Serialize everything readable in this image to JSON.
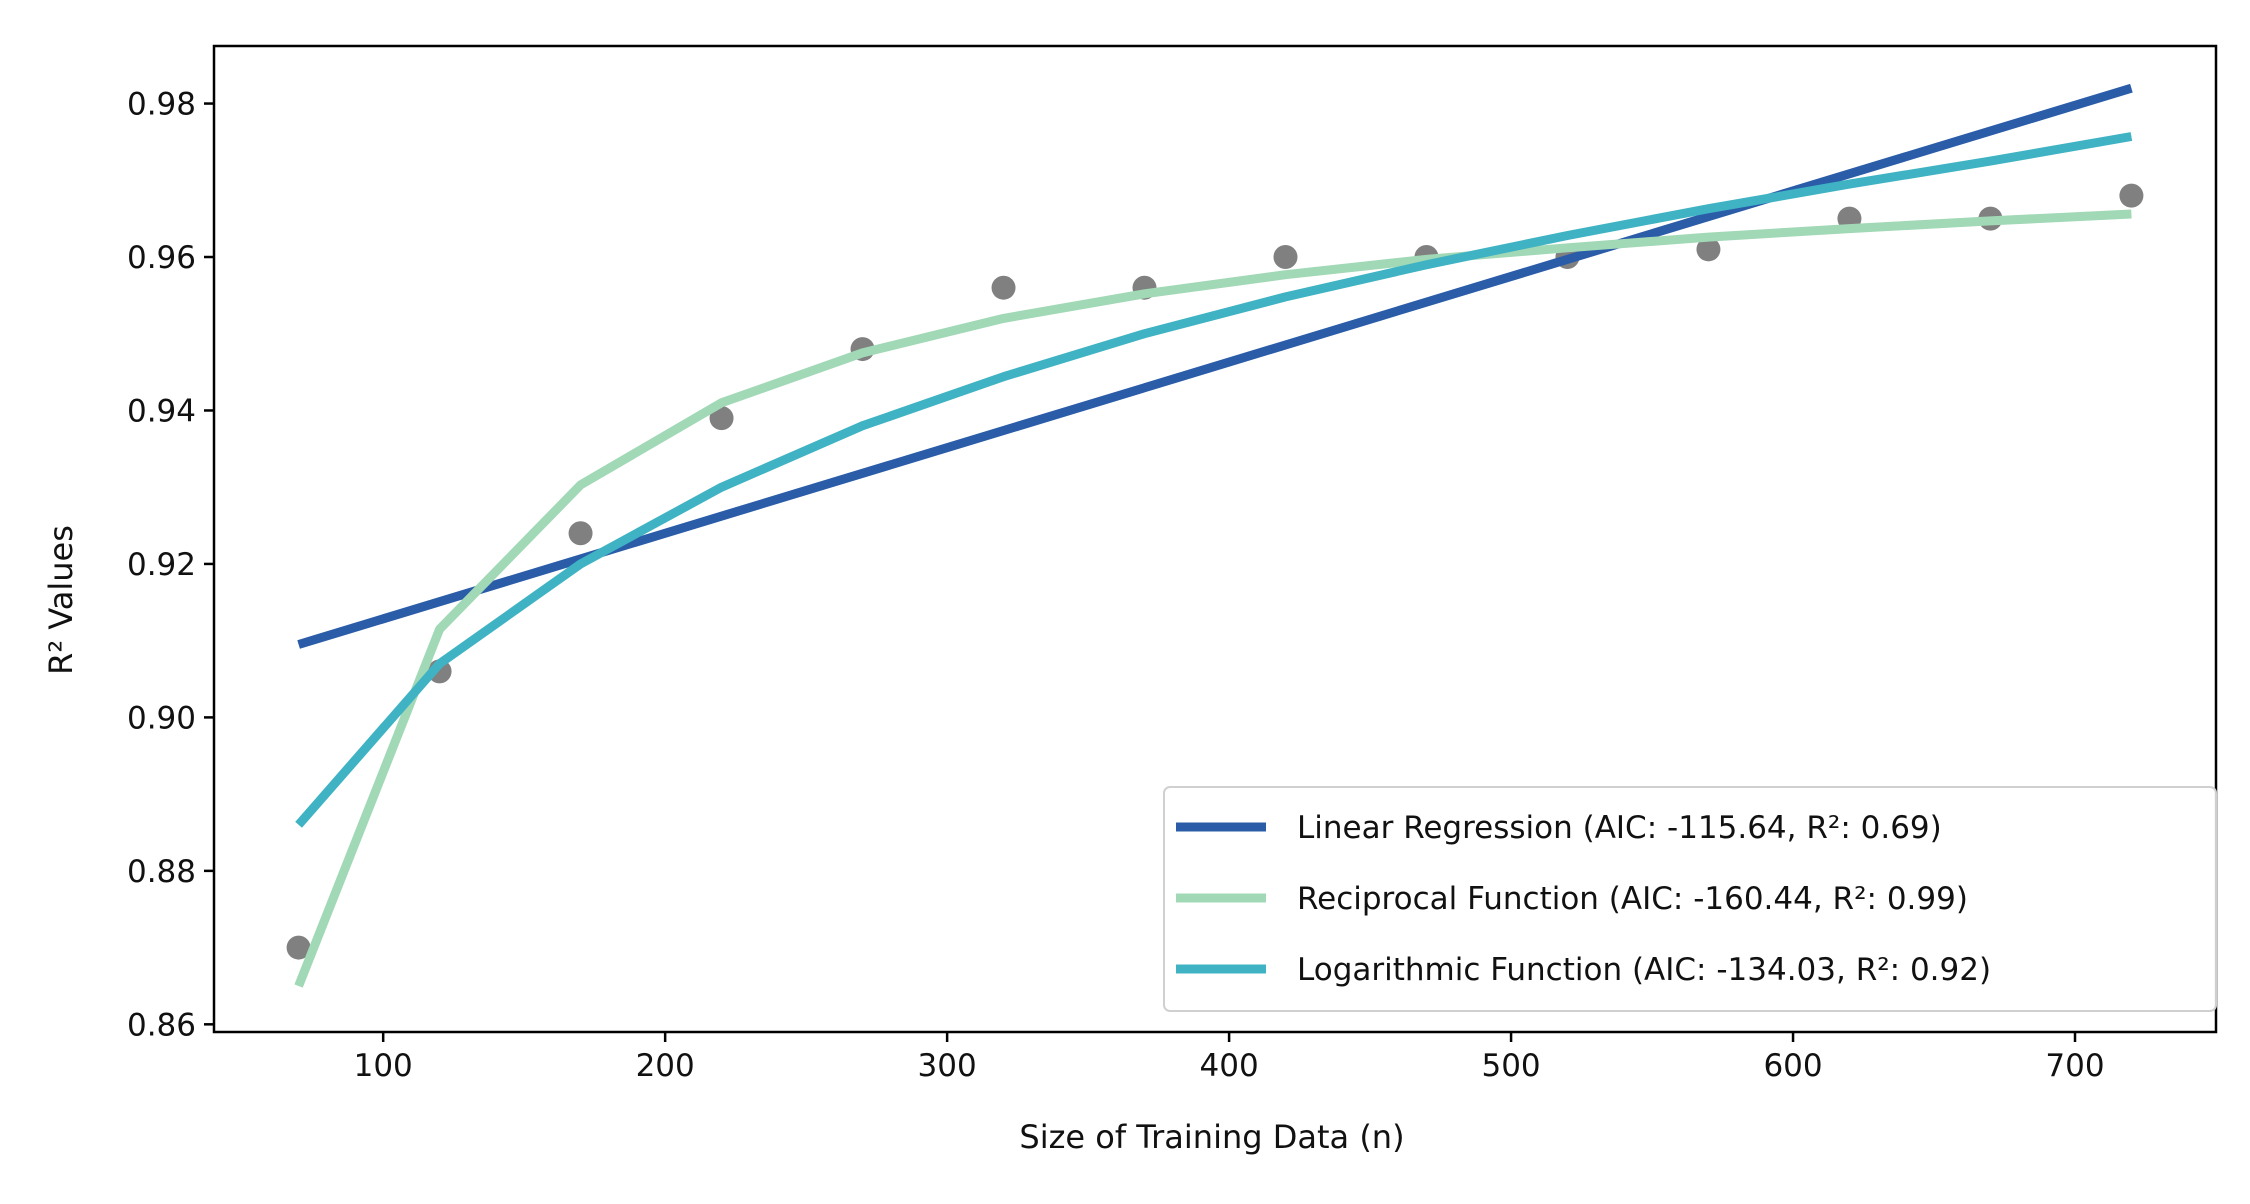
{
  "chart_data": {
    "type": "line",
    "xlabel": "Size of Training Data (n)",
    "ylabel": "R² Values",
    "xlim": [
      40,
      750
    ],
    "ylim": [
      0.859,
      0.9875
    ],
    "xticks": [
      100,
      200,
      300,
      400,
      500,
      600,
      700
    ],
    "yticks": [
      0.86,
      0.88,
      0.9,
      0.92,
      0.94,
      0.96,
      0.98
    ],
    "xtick_labels": [
      "100",
      "200",
      "300",
      "400",
      "500",
      "600",
      "700"
    ],
    "ytick_labels": [
      "0.86",
      "0.88",
      "0.90",
      "0.92",
      "0.94",
      "0.96",
      "0.98"
    ],
    "grid": false,
    "legend_position": "lower-right",
    "points": {
      "color": "#808080",
      "x": [
        70,
        120,
        170,
        220,
        270,
        320,
        370,
        420,
        470,
        520,
        570,
        620,
        670,
        720
      ],
      "y": [
        0.87,
        0.906,
        0.924,
        0.939,
        0.948,
        0.956,
        0.956,
        0.96,
        0.96,
        0.96,
        0.961,
        0.965,
        0.965,
        0.968
      ]
    },
    "series": [
      {
        "name": "Linear Regression (AIC: -115.64, R²: 0.69)",
        "color": "#2a5ca8",
        "x": [
          70,
          720
        ],
        "y": [
          0.9095,
          0.982
        ]
      },
      {
        "name": "Reciprocal Function (AIC: -160.44, R²: 0.99)",
        "color": "#a1d8b6",
        "x": [
          70,
          120,
          170,
          220,
          270,
          320,
          370,
          420,
          470,
          520,
          570,
          620,
          670,
          720
        ],
        "y": [
          0.865,
          0.9115,
          0.9303,
          0.941,
          0.9475,
          0.952,
          0.9552,
          0.9577,
          0.9597,
          0.9612,
          0.9626,
          0.9637,
          0.9647,
          0.9656
        ]
      },
      {
        "name": "Logarithmic Function (AIC: -134.03, R²: 0.92)",
        "color": "#3fb3c3",
        "x": [
          70,
          120,
          170,
          220,
          270,
          320,
          370,
          420,
          470,
          520,
          570,
          620,
          670,
          720
        ],
        "y": [
          0.886,
          0.907,
          0.92,
          0.93,
          0.938,
          0.9444,
          0.95,
          0.9548,
          0.959,
          0.9628,
          0.9663,
          0.9695,
          0.9725,
          0.9757
        ]
      }
    ]
  }
}
